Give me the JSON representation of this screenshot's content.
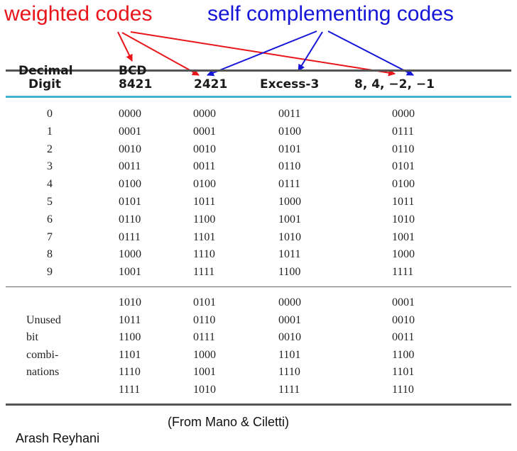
{
  "labels": {
    "weighted": "weighted codes",
    "self_complementing": "self complementing codes"
  },
  "colors": {
    "weighted": "#e8151b",
    "self_complementing": "#1515d8",
    "header_rule": "#43b3d4"
  },
  "table": {
    "headers": {
      "decimal_line1": "Decimal",
      "decimal_line2": "Digit",
      "bcd_line1": "BCD",
      "bcd_line2": "8421",
      "col_2421": "2421",
      "excess3": "Excess-3",
      "col_84m2m1": "8, 4, −2, −1"
    },
    "rows": [
      [
        "0",
        "0000",
        "0000",
        "0011",
        "0000"
      ],
      [
        "1",
        "0001",
        "0001",
        "0100",
        "0111"
      ],
      [
        "2",
        "0010",
        "0010",
        "0101",
        "0110"
      ],
      [
        "3",
        "0011",
        "0011",
        "0110",
        "0101"
      ],
      [
        "4",
        "0100",
        "0100",
        "0111",
        "0100"
      ],
      [
        "5",
        "0101",
        "1011",
        "1000",
        "1011"
      ],
      [
        "6",
        "0110",
        "1100",
        "1001",
        "1010"
      ],
      [
        "7",
        "0111",
        "1101",
        "1010",
        "1001"
      ],
      [
        "8",
        "1000",
        "1110",
        "1011",
        "1000"
      ],
      [
        "9",
        "1001",
        "1111",
        "1100",
        "1111"
      ]
    ],
    "unused_label": [
      "Unused",
      "bit",
      "combi-",
      "nations"
    ],
    "unused_rows": [
      [
        "1010",
        "0101",
        "0000",
        "0001"
      ],
      [
        "1011",
        "0110",
        "0001",
        "0010"
      ],
      [
        "1100",
        "0111",
        "0010",
        "0011"
      ],
      [
        "1101",
        "1000",
        "1101",
        "1100"
      ],
      [
        "1110",
        "1001",
        "1110",
        "1101"
      ],
      [
        "1111",
        "1010",
        "1111",
        "1110"
      ]
    ]
  },
  "source": "(From Mano &  Ciletti)",
  "author": "Arash Reyhani"
}
